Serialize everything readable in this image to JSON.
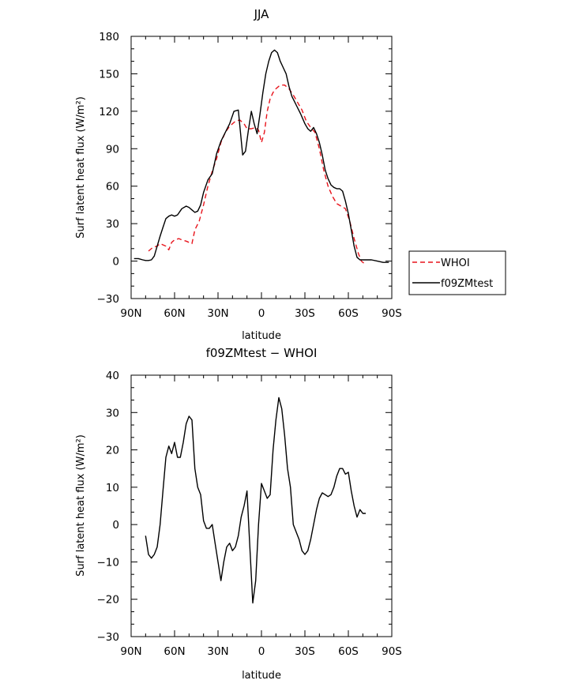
{
  "chart_data": [
    {
      "type": "line",
      "title": "JJA",
      "xlabel": "latitude",
      "ylabel": "Surf latent heat flux (W/m²)",
      "xlim": [
        -90,
        90
      ],
      "ylim": [
        -30,
        180
      ],
      "x_ticks": [
        -90,
        -60,
        -30,
        0,
        30,
        60,
        90
      ],
      "x_tick_labels": [
        "90N",
        "60N",
        "30N",
        "0",
        "30S",
        "60S",
        "90S"
      ],
      "y_ticks": [
        -30,
        0,
        30,
        60,
        90,
        120,
        150,
        180
      ],
      "y_tick_labels": [
        "−30",
        "0",
        "30",
        "60",
        "90",
        "120",
        "150",
        "180"
      ],
      "grid": false,
      "legend_position": "right",
      "series": [
        {
          "name": "WHOI",
          "color": "#e8141c",
          "dash": "dashed",
          "x": [
            -78,
            -75,
            -72,
            -70,
            -68,
            -66,
            -64,
            -62,
            -60,
            -57,
            -55,
            -52,
            -50,
            -48,
            -46,
            -43,
            -40,
            -37,
            -34,
            -31,
            -28,
            -25,
            -22,
            -18,
            -15,
            -12,
            -10,
            -7,
            -4,
            -2,
            0,
            2,
            4,
            6,
            8,
            10,
            12,
            14,
            16,
            19,
            22,
            25,
            28,
            31,
            34,
            37,
            40,
            43,
            46,
            49,
            52,
            55,
            58,
            61,
            64,
            67,
            69,
            71
          ],
          "y": [
            8,
            11,
            12,
            14,
            13,
            12,
            9,
            15,
            17,
            18,
            17,
            16,
            15,
            14,
            25,
            32,
            45,
            60,
            72,
            82,
            95,
            103,
            108,
            112,
            113,
            110,
            106,
            106,
            107,
            105,
            95,
            103,
            120,
            130,
            135,
            138,
            140,
            141,
            141,
            138,
            133,
            127,
            121,
            112,
            107,
            103,
            90,
            73,
            60,
            52,
            46,
            44,
            42,
            32,
            18,
            6,
            0,
            -2
          ]
        },
        {
          "name": "f09ZMtest",
          "color": "#000000",
          "dash": "solid",
          "x": [
            -88,
            -85,
            -82,
            -80,
            -78,
            -76,
            -74,
            -72,
            -70,
            -68,
            -66,
            -64,
            -62,
            -60,
            -58,
            -55,
            -52,
            -50,
            -48,
            -46,
            -44,
            -42,
            -40,
            -37,
            -34,
            -31,
            -28,
            -25,
            -22,
            -19,
            -16,
            -13,
            -11,
            -9,
            -7,
            -5,
            -3,
            -1,
            1,
            3,
            5,
            7,
            9,
            11,
            13,
            15,
            17,
            19,
            21,
            24,
            27,
            30,
            32,
            34,
            36,
            38,
            40,
            42,
            44,
            46,
            48,
            50,
            52,
            54,
            56,
            58,
            60,
            62,
            64,
            66,
            68,
            70,
            72,
            76,
            80,
            84,
            88
          ],
          "y": [
            2,
            2,
            1,
            0.5,
            0.5,
            1,
            4,
            12,
            20,
            27,
            34,
            36,
            37,
            36,
            37,
            42,
            44,
            43,
            41,
            39,
            40,
            45,
            55,
            65,
            70,
            86,
            96,
            103,
            110,
            120,
            121,
            85,
            88,
            105,
            120,
            110,
            102,
            118,
            135,
            150,
            160,
            167,
            169,
            167,
            160,
            155,
            150,
            140,
            132,
            125,
            118,
            110,
            106,
            104,
            107,
            102,
            95,
            85,
            73,
            66,
            61,
            59,
            58,
            58,
            56,
            48,
            38,
            25,
            12,
            3,
            1,
            1,
            1,
            1,
            0,
            -1,
            -1
          ]
        }
      ]
    },
    {
      "type": "line",
      "title": "f09ZMtest − WHOI",
      "xlabel": "latitude",
      "ylabel": "Surf latent heat flux (W/m²)",
      "xlim": [
        -90,
        90
      ],
      "ylim": [
        -30,
        40
      ],
      "x_ticks": [
        -90,
        -60,
        -30,
        0,
        30,
        60,
        90
      ],
      "x_tick_labels": [
        "90N",
        "60N",
        "30N",
        "0",
        "30S",
        "60S",
        "90S"
      ],
      "y_ticks": [
        -30,
        -20,
        -10,
        0,
        10,
        20,
        30,
        40
      ],
      "y_tick_labels": [
        "−30",
        "−20",
        "−10",
        "0",
        "10",
        "20",
        "30",
        "40"
      ],
      "grid": false,
      "series": [
        {
          "name": "",
          "color": "#000000",
          "dash": "solid",
          "x": [
            -80,
            -78,
            -76,
            -74,
            -72,
            -70,
            -68,
            -66,
            -64,
            -62,
            -60,
            -58,
            -56,
            -54,
            -52,
            -50,
            -48,
            -46,
            -44,
            -42,
            -40,
            -38,
            -36,
            -34,
            -32,
            -30,
            -28,
            -26,
            -24,
            -22,
            -20,
            -18,
            -16,
            -14,
            -12,
            -10,
            -8,
            -6,
            -4,
            -2,
            0,
            2,
            4,
            6,
            8,
            10,
            12,
            14,
            16,
            18,
            20,
            22,
            24,
            26,
            28,
            30,
            32,
            34,
            36,
            38,
            40,
            42,
            44,
            46,
            48,
            50,
            52,
            54,
            56,
            58,
            60,
            62,
            64,
            66,
            68,
            70,
            72
          ],
          "y": [
            -3,
            -8,
            -9,
            -8,
            -6,
            0,
            9,
            18,
            21,
            19,
            22,
            18,
            18,
            22,
            27,
            29,
            28,
            15,
            10,
            8,
            1,
            -1,
            -1,
            0,
            -5,
            -10,
            -15,
            -10,
            -6,
            -5,
            -7,
            -6,
            -3,
            2,
            5,
            9,
            -6,
            -21,
            -15,
            0,
            11,
            9,
            7,
            8,
            20,
            28,
            34,
            31,
            24,
            15,
            10,
            0,
            -2,
            -4,
            -7,
            -8,
            -7,
            -4,
            0,
            4,
            7,
            8.5,
            8,
            7.5,
            8,
            10,
            13,
            15,
            15,
            13.5,
            14,
            9,
            5,
            2,
            4,
            3,
            3
          ]
        }
      ]
    }
  ]
}
